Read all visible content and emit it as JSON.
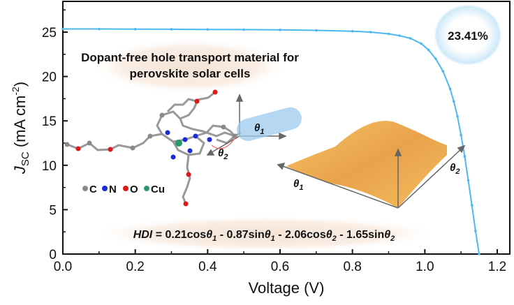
{
  "chart_data": {
    "type": "line",
    "xlabel": "Voltage (V)",
    "ylabel_main": "J",
    "ylabel_sub": "SC",
    "ylabel_unit": " (mA cm",
    "ylabel_exp": "-2",
    "ylabel_close": ")",
    "xlim": [
      0,
      1.2
    ],
    "ylim": [
      0,
      27.5
    ],
    "xticks": [
      "0.0",
      "0.2",
      "0.4",
      "0.6",
      "0.8",
      "1.0",
      "1.2"
    ],
    "yticks": [
      "0",
      "5",
      "10",
      "15",
      "20",
      "25"
    ],
    "grid": false,
    "series_color": "#4db8f0",
    "series": [
      {
        "x": [
          0,
          0.1,
          0.2,
          0.3,
          0.4,
          0.5,
          0.6,
          0.7,
          0.8,
          0.85,
          0.9,
          0.93,
          0.96,
          0.99,
          1.01,
          1.03,
          1.05,
          1.07,
          1.08,
          1.09,
          1.1,
          1.11,
          1.12,
          1.13,
          1.14,
          1.15
        ],
        "y": [
          25.35,
          25.35,
          25.33,
          25.32,
          25.3,
          25.28,
          25.25,
          25.2,
          25.1,
          25.0,
          24.8,
          24.6,
          24.3,
          23.7,
          23.0,
          22.0,
          20.6,
          18.6,
          17.2,
          15.5,
          13.4,
          11.0,
          8.3,
          5.5,
          2.6,
          0
        ]
      }
    ],
    "annotations": {
      "efficiency": "23.41%",
      "title_line1": "Dopant-free hole transport material for",
      "title_line2": "perovskite solar cells",
      "legend_atoms": [
        "C",
        "N",
        "O",
        "Cu"
      ],
      "legend_colors": [
        "#8a8a8a",
        "#1a2bd6",
        "#e01818",
        "#2a9a6a"
      ],
      "theta1": "θ",
      "theta1_sub": "1",
      "theta2": "θ",
      "theta2_sub": "2",
      "equation": {
        "lhs": "HDI",
        "t1": " = 0.21cos",
        "t2": " - 0.87sin",
        "t3": " - 2.06cos",
        "t4": " - 1.65sin",
        "th": "θ",
        "s1": "1",
        "s2": "2"
      }
    }
  }
}
